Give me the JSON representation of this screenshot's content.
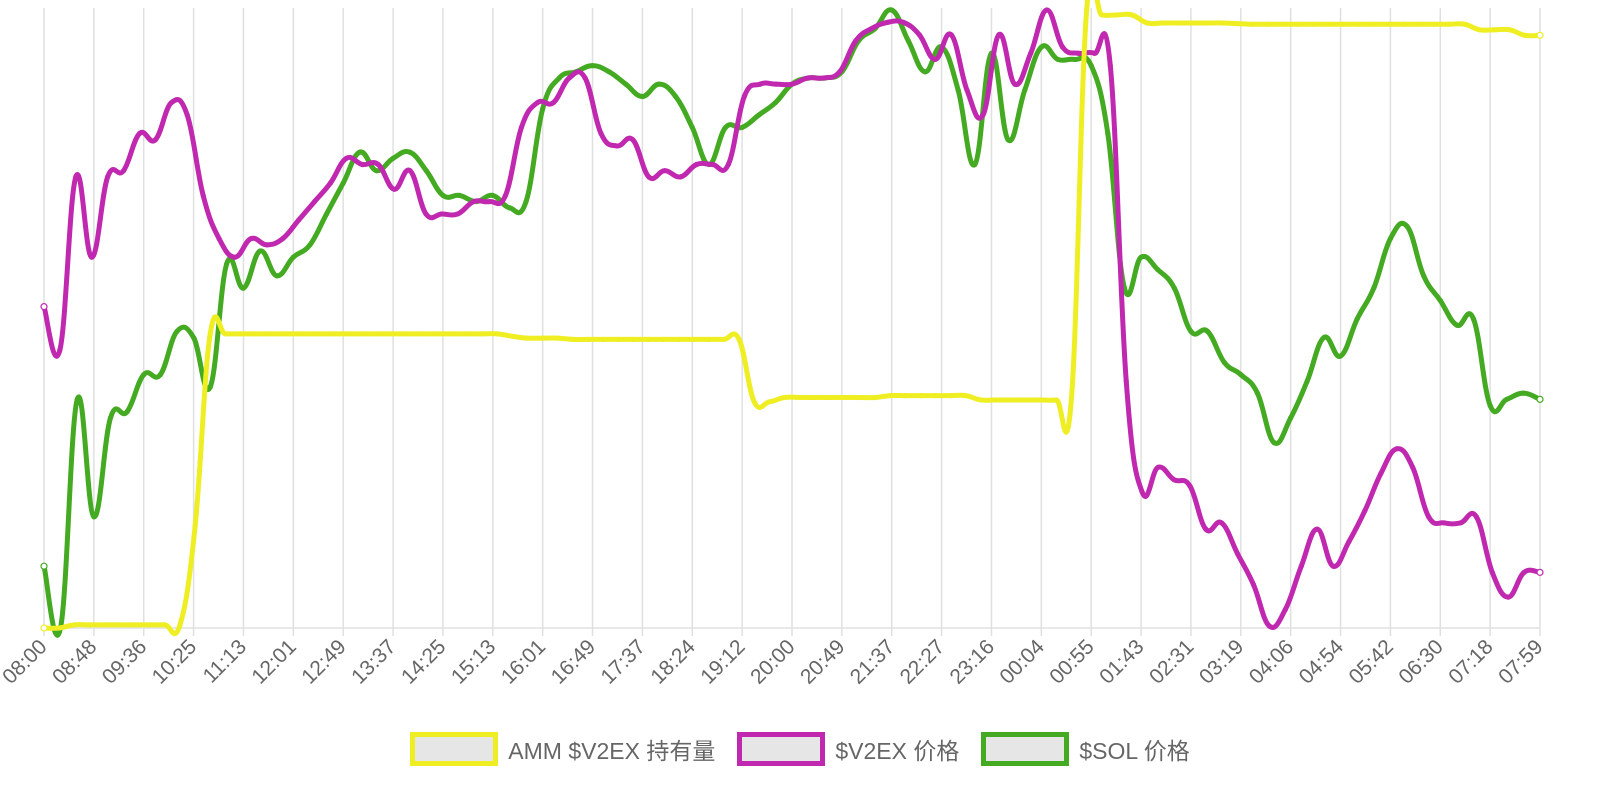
{
  "chart_data": {
    "type": "line",
    "x_tick_labels": [
      "08:00",
      "08:48",
      "09:36",
      "10:25",
      "11:13",
      "12:01",
      "12:49",
      "13:37",
      "14:25",
      "15:13",
      "16:01",
      "16:49",
      "17:37",
      "18:24",
      "19:12",
      "20:00",
      "20:49",
      "21:37",
      "22:27",
      "23:16",
      "00:04",
      "00:55",
      "01:43",
      "02:31",
      "03:19",
      "04:06",
      "04:54",
      "05:42",
      "06:30",
      "07:18",
      "07:59"
    ],
    "y_axis_labels_shown": false,
    "grid": "vertical",
    "legend_position": "bottom",
    "series": [
      {
        "name": "AMM $V2EX 持有量",
        "color": "#eeee22",
        "values": [
          0,
          0,
          0.5,
          0.5,
          0.5,
          0.5,
          0.5,
          0.5,
          0.5,
          0.5,
          16.5,
          47.6,
          47.6,
          47.6,
          47.6,
          47.6,
          47.6,
          47.6,
          47.6,
          47.6,
          47.6,
          47.6,
          47.6,
          47.6,
          47.6,
          47.6,
          47.6,
          47.6,
          47.6,
          47.6,
          47.6,
          47.2,
          46.9,
          46.9,
          46.9,
          46.7,
          46.7,
          46.7,
          46.7,
          46.7,
          46.7,
          46.7,
          46.7,
          46.7,
          46.7,
          46.7,
          46.7,
          36.6,
          36.6,
          37.3,
          37.3,
          37.3,
          37.3,
          37.3,
          37.3,
          37.3,
          37.6,
          37.6,
          37.6,
          37.6,
          37.6,
          37.6,
          36.9,
          36.9,
          36.9,
          36.9,
          36.9,
          36.9,
          37.4,
          100,
          99.2,
          99.2,
          99.2,
          97.9,
          97.9,
          97.9,
          97.9,
          97.9,
          97.9,
          97.8,
          97.7,
          97.7,
          97.7,
          97.7,
          97.7,
          97.7,
          97.7,
          97.7,
          97.7,
          97.7,
          97.7,
          97.7,
          97.7,
          97.7,
          97.7,
          96.8,
          96.8,
          96.8,
          95.9,
          95.9
        ]
      },
      {
        "name": "$V2EX 价格",
        "color": "#c028b0",
        "values": [
          52,
          45,
          73,
          60,
          73,
          74,
          80,
          79,
          85,
          83,
          70,
          63,
          60,
          63,
          62,
          63,
          66,
          69,
          72,
          76,
          75,
          75,
          71,
          74,
          67,
          67,
          67,
          69,
          69,
          70,
          81,
          85,
          85,
          89,
          89,
          80,
          78,
          79,
          73,
          74,
          73,
          75,
          75,
          75,
          86,
          88,
          88,
          88,
          89,
          89,
          90,
          95,
          97,
          98,
          98,
          96,
          92,
          96,
          87,
          83,
          96,
          88,
          93,
          100,
          94,
          93,
          93,
          91,
          40,
          22,
          26,
          24,
          23,
          16,
          17,
          12,
          7,
          0.3,
          3,
          10,
          16,
          10,
          14,
          19,
          25,
          29,
          26,
          18,
          17,
          17,
          18,
          9,
          5,
          9,
          9
        ]
      },
      {
        "name": "$SOL 价格",
        "color": "#44aa22",
        "values": [
          10,
          0.1,
          37,
          18,
          34,
          35,
          41,
          41,
          48,
          47,
          39,
          59,
          55,
          61,
          57,
          60,
          62,
          67,
          72,
          77,
          74,
          76,
          77,
          74,
          70,
          70,
          69,
          70,
          68,
          69,
          84,
          89,
          90,
          91,
          90,
          88,
          86,
          88,
          86,
          81,
          75,
          81,
          81,
          83,
          85,
          88,
          89,
          89,
          90,
          95,
          97,
          100,
          95,
          90,
          94,
          87,
          75,
          93,
          79,
          87,
          94,
          92,
          92,
          91,
          80,
          55,
          60,
          58,
          55,
          48,
          48,
          43,
          41,
          38,
          30,
          34,
          40,
          47,
          44,
          50,
          55,
          63,
          65,
          57,
          53,
          49,
          50,
          36,
          37,
          38,
          37
        ]
      }
    ]
  }
}
